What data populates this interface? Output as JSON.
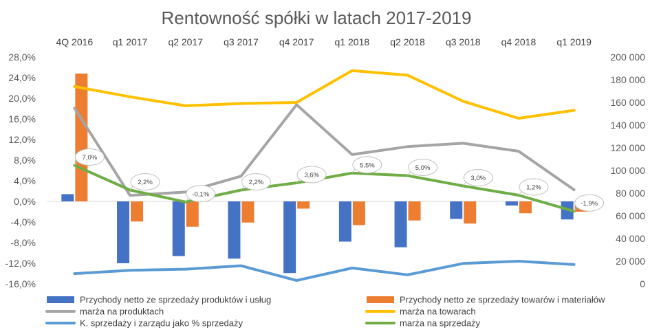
{
  "chart_data": {
    "type": "bar",
    "title": "Rentowność spółki w latach 2017-2019",
    "categories": [
      "4Q 2016",
      "q1 2017",
      "q2 2017",
      "q3 2017",
      "q4 2017",
      "q1 2018",
      "q2 2018",
      "q3 2018",
      "q4 2018",
      "q1 2019"
    ],
    "y_left": {
      "range": [
        -16,
        28
      ],
      "step": 4,
      "tick_labels": [
        "-16,0%",
        "-12,0%",
        "-8,0%",
        "-4,0%",
        "0,0%",
        "4,0%",
        "8,0%",
        "12,0%",
        "16,0%",
        "20,0%",
        "24,0%",
        "28,0%"
      ]
    },
    "y_right": {
      "range": [
        0,
        200000
      ],
      "step": 20000,
      "tick_labels": [
        "0",
        "20 000",
        "40 000",
        "60 000",
        "80 000",
        "100 000",
        "120 000",
        "140 000",
        "160 000",
        "180 000",
        "200 000"
      ]
    },
    "grid": false,
    "legend_position": "bottom",
    "series": [
      {
        "name": "Przychody netto ze sprzedaży produktów i usług",
        "kind": "bar",
        "axis": "left",
        "color": "#4472C4",
        "values": [
          1.4,
          -12.0,
          -10.6,
          -11.1,
          -13.9,
          -7.8,
          -8.9,
          -3.4,
          -0.8,
          -3.5
        ]
      },
      {
        "name": "Przychody netto ze sprzedaży towarów i materiałów",
        "kind": "bar",
        "axis": "left",
        "color": "#ED7D31",
        "values": [
          24.8,
          -3.9,
          -4.9,
          -4.1,
          -1.4,
          -4.6,
          -3.7,
          -4.3,
          -2.3,
          -2.0
        ]
      },
      {
        "name": "marża na produktach",
        "kind": "line",
        "axis": "right",
        "color": "#A5A5A5",
        "values": [
          155000,
          78000,
          81000,
          95000,
          158000,
          114000,
          121000,
          124000,
          117000,
          83000
        ]
      },
      {
        "name": "marża na towarach",
        "kind": "line",
        "axis": "right",
        "color": "#FFC000",
        "values": [
          174000,
          165000,
          157000,
          159000,
          160000,
          188000,
          184000,
          161000,
          146000,
          153000
        ]
      },
      {
        "name": "K. sprzedaży i zarządu jako % sprzedaży",
        "kind": "line",
        "axis": "right",
        "color": "#5B9BD5",
        "values": [
          9000,
          12000,
          13000,
          16000,
          3000,
          14000,
          8000,
          18000,
          20000,
          17000
        ]
      },
      {
        "name": "marża na sprzedaży",
        "kind": "line",
        "axis": "left",
        "color": "#70AD47",
        "values": [
          7.0,
          2.2,
          -0.1,
          2.2,
          3.6,
          5.5,
          5.0,
          3.0,
          1.2,
          -1.9
        ],
        "data_labels": [
          "7,0%",
          "2,2%",
          "-0,1%",
          "2,2%",
          "3,6%",
          "5,5%",
          "5,0%",
          "3,0%",
          "1,2%",
          "-1,9%"
        ]
      }
    ]
  }
}
